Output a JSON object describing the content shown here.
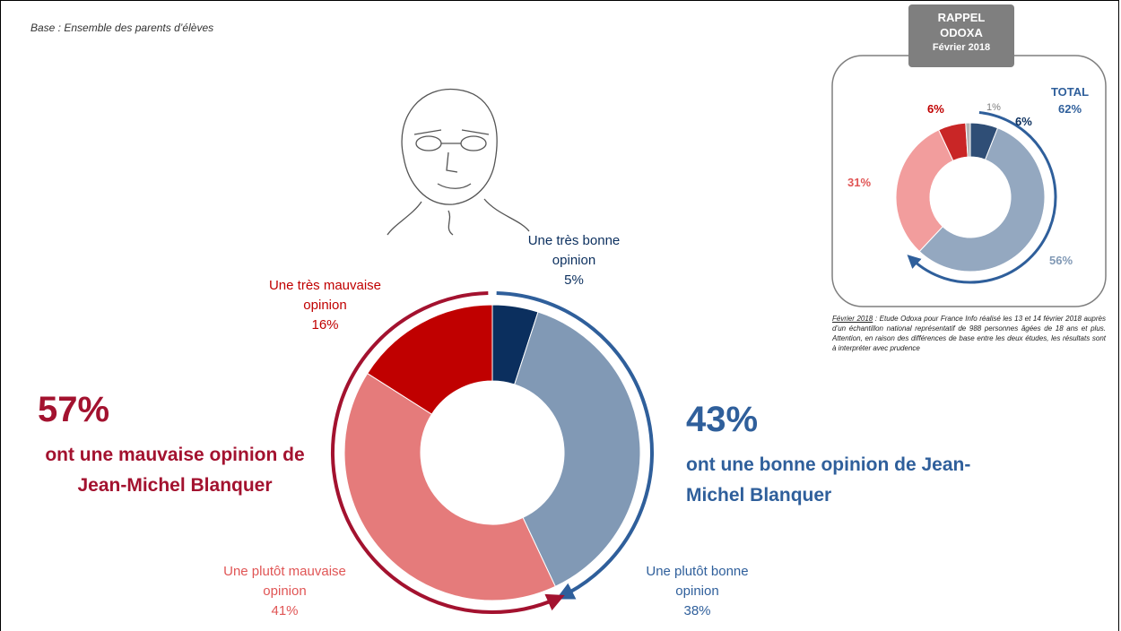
{
  "note": "Base : Ensemble des parents d’élèves",
  "chart_data": [
    {
      "type": "donut",
      "categories": [
        "Une très bonne opinion",
        "Une plutôt bonne opinion",
        "Une plutôt mauvaise opinion",
        "Une très mauvaise opinion"
      ],
      "values": [
        5,
        38,
        41,
        16
      ],
      "value_labels": [
        "5%",
        "38%",
        "41%",
        "16%"
      ],
      "colors": [
        "#0b2f5e",
        "#8199b5",
        "#e57b7b",
        "#c00000"
      ],
      "totals": [
        {
          "value": 57,
          "value_label": "57%",
          "text": "ont une mauvaise opinion de Jean-Michel Blanquer",
          "color": "#a3122f"
        },
        {
          "value": 43,
          "value_label": "43%",
          "text": "ont une bonne opinion de Jean-Michel Blanquer",
          "color": "#2f5f9b"
        }
      ]
    },
    {
      "type": "donut",
      "title": [
        "RAPPEL",
        "ODOXA",
        "Février 2018"
      ],
      "values": [
        6,
        56,
        31,
        6,
        1
      ],
      "value_labels": [
        "6%",
        "56%",
        "31%",
        "6%",
        "1%"
      ],
      "colors": [
        "#0b2f5e",
        "#8199b5",
        "#f08c8c",
        "#c00000",
        "#a6a6a6"
      ],
      "total": {
        "label": "TOTAL",
        "value": 62,
        "value_label": "62%",
        "color": "#2f5f9b"
      },
      "footnote": {
        "lead": "Février 2018",
        "text": " : Etude Odoxa pour France Info réalisé les 13 et 14 février 2018 auprès d’un échantillon national représentatif de 988 personnes âgées de 18 ans et plus. Attention, en raison des différences de base entre les deux études, les résultats sont à interpréter avec prudence"
      }
    }
  ]
}
